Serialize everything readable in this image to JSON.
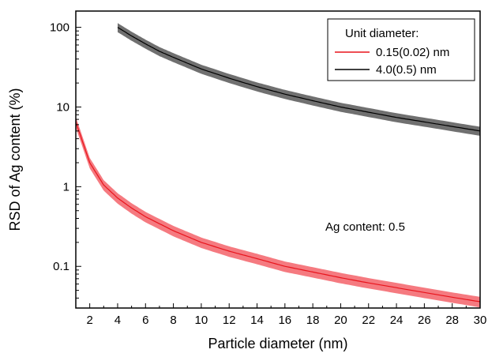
{
  "chart_data": {
    "type": "line",
    "title": "",
    "xlabel": "Particle diameter (nm)",
    "ylabel": "RSD of Ag content (%)",
    "xlim": [
      1,
      30
    ],
    "ylim": [
      0.03,
      160
    ],
    "yscale": "log",
    "grid": false,
    "x_ticks": [
      2,
      4,
      6,
      8,
      10,
      12,
      14,
      16,
      18,
      20,
      22,
      24,
      26,
      28,
      30
    ],
    "y_ticks": [
      0.1,
      1,
      10,
      100
    ],
    "y_tick_labels": [
      "0.1",
      "1",
      "10",
      "100"
    ],
    "legend": {
      "title": "Unit diameter:",
      "placement": "top-right"
    },
    "annotation": "Ag content: 0.5",
    "series": [
      {
        "name": "0.15(0.02) nm",
        "color": "#e8141c",
        "band_color": "#f57a80",
        "x": [
          1,
          2,
          3,
          4,
          5,
          6,
          8,
          10,
          12,
          14,
          16,
          18,
          20,
          22,
          24,
          26,
          28,
          30
        ],
        "values": [
          6.5,
          2.0,
          1.05,
          0.72,
          0.54,
          0.42,
          0.28,
          0.2,
          0.155,
          0.125,
          0.1,
          0.085,
          0.072,
          0.062,
          0.054,
          0.047,
          0.041,
          0.036
        ],
        "band_rel": 0.15
      },
      {
        "name": "4.0(0.5) nm",
        "color": "#000000",
        "band_color": "#707070",
        "x": [
          4,
          5,
          6,
          7,
          8,
          10,
          12,
          14,
          16,
          18,
          20,
          22,
          24,
          26,
          28,
          30
        ],
        "values": [
          100,
          78,
          62,
          50,
          42,
          30,
          23,
          18,
          14.5,
          12,
          10,
          8.6,
          7.4,
          6.5,
          5.7,
          5
        ],
        "band_rel": 0.13
      }
    ]
  }
}
